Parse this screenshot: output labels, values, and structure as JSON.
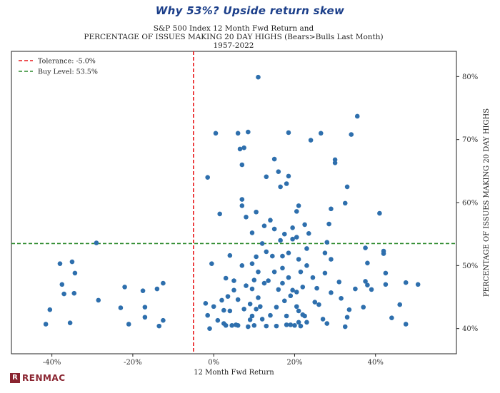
{
  "headline": "Why 53%? Upside return skew",
  "logo": {
    "mark": "R",
    "text": "RENMAC"
  },
  "chart_data": {
    "type": "scatter",
    "title_lines": [
      "S&P 500 Index 12 Month Fwd Return and",
      "PERCENTAGE OF ISSUES MAKING 20 DAY HIGHS (Bears>Bulls Last Month)",
      "1957-2022"
    ],
    "xlabel": "12 Month Fwd Return",
    "ylabel": "PERCENTAGE OF ISSUES MAKING 20 DAY HIGHS",
    "xlim": [
      -50,
      60
    ],
    "ylim": [
      36,
      84
    ],
    "xticks": [
      -40,
      -20,
      0,
      20,
      40
    ],
    "xtick_labels": [
      "-40%",
      "-20%",
      "0%",
      "20%",
      "40%"
    ],
    "yticks": [
      40,
      50,
      60,
      70,
      80
    ],
    "ytick_labels": [
      "40%",
      "50%",
      "60%",
      "70%",
      "80%"
    ],
    "y_axis_side": "right",
    "grid": false,
    "legend_position": "top-left",
    "reference_lines": [
      {
        "label": "Tolerance: -5.0%",
        "orientation": "vertical",
        "value": -5.0,
        "color": "#e8191b",
        "style": "dashed"
      },
      {
        "label": "Buy Level: 53.5%",
        "orientation": "horizontal",
        "value": 53.5,
        "color": "#2d8a2d",
        "style": "dashed"
      }
    ],
    "point_color": "#2e6fad",
    "points": [
      [
        -41.5,
        40.7
      ],
      [
        -40.5,
        43.0
      ],
      [
        -38.0,
        50.3
      ],
      [
        -37.5,
        47.0
      ],
      [
        -37.0,
        45.5
      ],
      [
        -35.5,
        40.9
      ],
      [
        -35.0,
        50.6
      ],
      [
        -34.5,
        45.6
      ],
      [
        -34.3,
        48.8
      ],
      [
        -29.0,
        53.6
      ],
      [
        -28.5,
        44.5
      ],
      [
        -23.0,
        43.3
      ],
      [
        -22.0,
        46.6
      ],
      [
        -21.0,
        40.7
      ],
      [
        -17.5,
        46.0
      ],
      [
        -17.0,
        41.8
      ],
      [
        -17.0,
        43.4
      ],
      [
        -14.0,
        46.3
      ],
      [
        -13.5,
        40.4
      ],
      [
        -12.5,
        47.2
      ],
      [
        -12.5,
        41.3
      ],
      [
        -2.0,
        44.0
      ],
      [
        -1.5,
        64.0
      ],
      [
        -1.5,
        42.1
      ],
      [
        -1.0,
        40.0
      ],
      [
        -0.5,
        50.3
      ],
      [
        0.0,
        43.5
      ],
      [
        0.5,
        71.0
      ],
      [
        1.0,
        41.3
      ],
      [
        1.5,
        58.2
      ],
      [
        2.0,
        44.5
      ],
      [
        2.5,
        40.8
      ],
      [
        2.5,
        42.9
      ],
      [
        3.0,
        48.0
      ],
      [
        3.0,
        40.5
      ],
      [
        3.5,
        45.1
      ],
      [
        4.0,
        51.6
      ],
      [
        4.0,
        42.8
      ],
      [
        4.5,
        40.5
      ],
      [
        5.0,
        47.6
      ],
      [
        5.0,
        46.1
      ],
      [
        5.5,
        40.6
      ],
      [
        6.0,
        71.0
      ],
      [
        6.0,
        44.6
      ],
      [
        6.0,
        40.5
      ],
      [
        6.5,
        68.5
      ],
      [
        7.0,
        60.5
      ],
      [
        7.0,
        66.0
      ],
      [
        7.0,
        59.5
      ],
      [
        7.0,
        50.0
      ],
      [
        7.5,
        68.7
      ],
      [
        7.5,
        43.1
      ],
      [
        8.0,
        57.7
      ],
      [
        8.0,
        46.8
      ],
      [
        8.5,
        71.2
      ],
      [
        8.5,
        40.3
      ],
      [
        9.0,
        41.4
      ],
      [
        9.0,
        43.9
      ],
      [
        9.5,
        46.3
      ],
      [
        9.5,
        50.3
      ],
      [
        9.5,
        55.2
      ],
      [
        9.5,
        42.0
      ],
      [
        10.0,
        40.5
      ],
      [
        10.0,
        47.7
      ],
      [
        10.5,
        58.5
      ],
      [
        10.5,
        51.4
      ],
      [
        10.5,
        43.1
      ],
      [
        11.0,
        79.9
      ],
      [
        11.0,
        44.9
      ],
      [
        11.0,
        49.0
      ],
      [
        11.5,
        43.5
      ],
      [
        12.0,
        53.5
      ],
      [
        12.0,
        41.5
      ],
      [
        12.5,
        47.2
      ],
      [
        12.5,
        56.3
      ],
      [
        13.0,
        64.1
      ],
      [
        13.0,
        52.2
      ],
      [
        13.0,
        40.4
      ],
      [
        13.5,
        47.6
      ],
      [
        14.0,
        42.1
      ],
      [
        14.0,
        57.2
      ],
      [
        14.5,
        51.5
      ],
      [
        15.0,
        66.9
      ],
      [
        15.0,
        55.8
      ],
      [
        15.0,
        49.0
      ],
      [
        15.5,
        43.4
      ],
      [
        15.5,
        40.4
      ],
      [
        16.0,
        64.9
      ],
      [
        16.0,
        46.2
      ],
      [
        16.5,
        62.5
      ],
      [
        16.5,
        54.0
      ],
      [
        17.0,
        51.5
      ],
      [
        17.0,
        49.6
      ],
      [
        17.0,
        47.2
      ],
      [
        17.5,
        44.4
      ],
      [
        17.5,
        55.0
      ],
      [
        18.0,
        63.0
      ],
      [
        18.0,
        42.0
      ],
      [
        18.0,
        40.6
      ],
      [
        18.5,
        71.1
      ],
      [
        18.5,
        64.2
      ],
      [
        18.5,
        52.0
      ],
      [
        18.5,
        48.1
      ],
      [
        19.0,
        45.2
      ],
      [
        19.0,
        40.6
      ],
      [
        19.5,
        56.0
      ],
      [
        19.5,
        54.2
      ],
      [
        19.5,
        46.1
      ],
      [
        20.0,
        40.5
      ],
      [
        20.5,
        58.6
      ],
      [
        20.5,
        54.5
      ],
      [
        20.5,
        45.8
      ],
      [
        20.5,
        43.5
      ],
      [
        21.0,
        59.5
      ],
      [
        21.0,
        51.0
      ],
      [
        21.0,
        42.8
      ],
      [
        21.0,
        41.0
      ],
      [
        21.5,
        49.0
      ],
      [
        21.5,
        40.4
      ],
      [
        22.0,
        42.2
      ],
      [
        22.0,
        46.6
      ],
      [
        22.5,
        56.5
      ],
      [
        22.5,
        42.0
      ],
      [
        23.0,
        52.7
      ],
      [
        23.0,
        50.0
      ],
      [
        23.0,
        41.0
      ],
      [
        23.5,
        55.1
      ],
      [
        24.0,
        69.9
      ],
      [
        24.5,
        48.1
      ],
      [
        25.0,
        44.2
      ],
      [
        25.5,
        46.4
      ],
      [
        26.0,
        43.8
      ],
      [
        26.5,
        71.0
      ],
      [
        27.0,
        41.5
      ],
      [
        27.5,
        52.0
      ],
      [
        27.5,
        48.8
      ],
      [
        28.0,
        40.8
      ],
      [
        28.0,
        53.7
      ],
      [
        28.5,
        56.6
      ],
      [
        29.0,
        59.0
      ],
      [
        29.0,
        51.0
      ],
      [
        29.0,
        45.7
      ],
      [
        30.0,
        66.8
      ],
      [
        30.0,
        66.3
      ],
      [
        31.0,
        47.4
      ],
      [
        31.5,
        44.8
      ],
      [
        32.5,
        40.3
      ],
      [
        32.5,
        59.9
      ],
      [
        33.0,
        62.5
      ],
      [
        33.0,
        41.8
      ],
      [
        33.5,
        43.0
      ],
      [
        34.0,
        70.8
      ],
      [
        35.0,
        46.3
      ],
      [
        35.5,
        73.7
      ],
      [
        37.0,
        43.4
      ],
      [
        37.5,
        52.8
      ],
      [
        37.5,
        47.5
      ],
      [
        38.0,
        50.4
      ],
      [
        38.0,
        46.9
      ],
      [
        39.0,
        46.2
      ],
      [
        41.0,
        58.3
      ],
      [
        42.0,
        52.3
      ],
      [
        42.0,
        51.9
      ],
      [
        42.5,
        48.8
      ],
      [
        42.5,
        47.0
      ],
      [
        44.0,
        41.7
      ],
      [
        46.0,
        43.8
      ],
      [
        47.5,
        47.3
      ],
      [
        47.5,
        40.7
      ],
      [
        50.5,
        47.0
      ]
    ]
  }
}
